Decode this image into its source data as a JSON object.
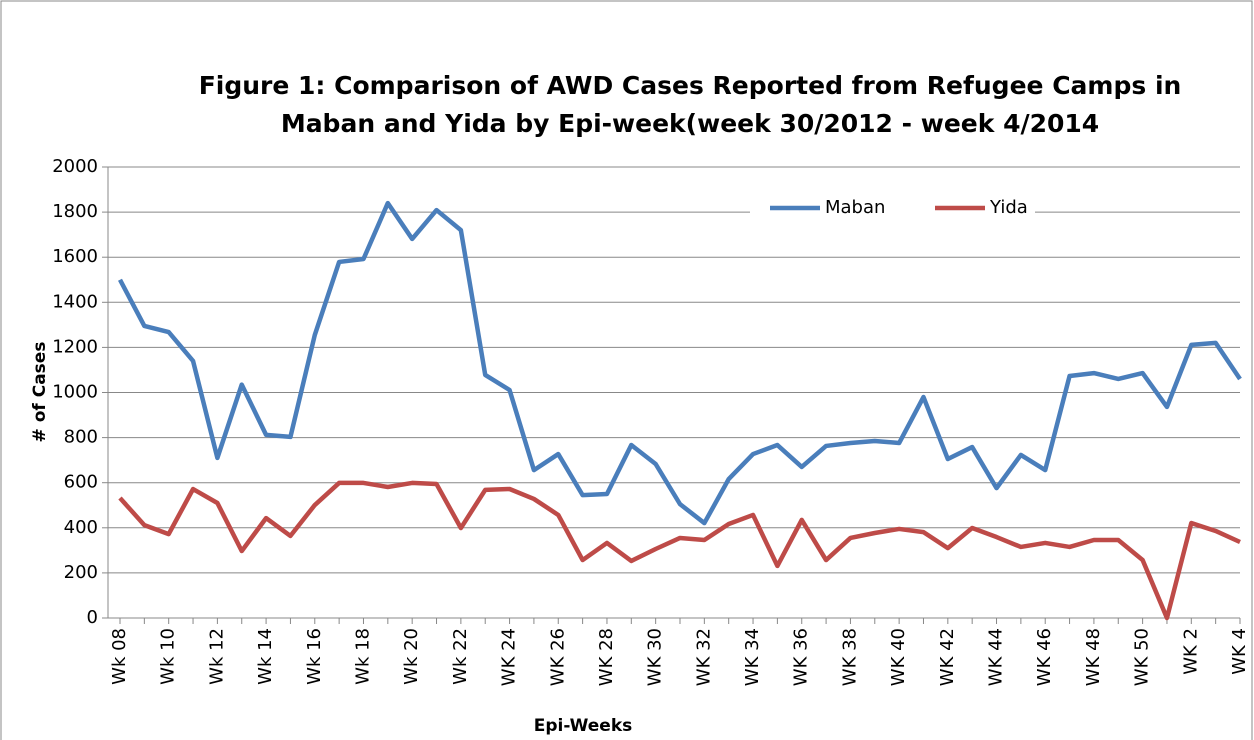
{
  "chart_data": {
    "type": "line",
    "title": [
      "Figure 1: Comparison of AWD Cases Reported from Refugee Camps in",
      "Maban and Yida by Epi-week(week 30/2012 - week 4/2014"
    ],
    "x_label": "Epi-Weeks",
    "y_label": "# of Cases",
    "categories": [
      "Wk 08",
      null,
      "Wk 10",
      null,
      "Wk 12",
      null,
      "Wk 14",
      null,
      "Wk 16",
      null,
      "Wk 18",
      null,
      "Wk 20",
      null,
      "Wk 22",
      null,
      "WK 24",
      null,
      "WK 26",
      null,
      "WK 28",
      null,
      "WK 30",
      null,
      "WK 32",
      null,
      "WK 34",
      null,
      "WK 36",
      null,
      "WK 38",
      null,
      "WK 40",
      null,
      "WK 42",
      null,
      "WK 44",
      null,
      "WK 46",
      null,
      "WK 48",
      null,
      "WK 50",
      null,
      "WK 2",
      null,
      "WK 4"
    ],
    "series": [
      {
        "name": "Maban",
        "color": "#4a7ebb",
        "values": [
          1500,
          1295,
          1268,
          1140,
          710,
          1035,
          812,
          803,
          1255,
          1579,
          1592,
          1840,
          1681,
          1809,
          1720,
          1078,
          1011,
          656,
          727,
          545,
          550,
          767,
          683,
          505,
          421,
          616,
          727,
          767,
          670,
          763,
          776,
          785,
          776,
          980,
          705,
          758,
          576,
          723,
          656,
          1073,
          1086,
          1060,
          1086,
          936,
          1211,
          1220,
          1060
        ]
      },
      {
        "name": "Yida",
        "color": "#be4b48",
        "values": [
          532,
          412,
          372,
          572,
          510,
          297,
          443,
          364,
          501,
          599,
          599,
          581,
          599,
          594,
          399,
          568,
          572,
          528,
          457,
          257,
          333,
          253,
          306,
          355,
          346,
          417,
          457,
          231,
          435,
          257,
          355,
          377,
          395,
          381,
          310,
          399,
          359,
          315,
          333,
          315,
          346,
          346,
          257,
          0,
          421,
          386,
          337
        ]
      }
    ],
    "ylim": [
      0,
      2000
    ],
    "yticks": [
      0,
      200,
      400,
      600,
      800,
      1000,
      1200,
      1400,
      1600,
      1800,
      2000
    ],
    "grid": true,
    "legend": "top-right"
  }
}
